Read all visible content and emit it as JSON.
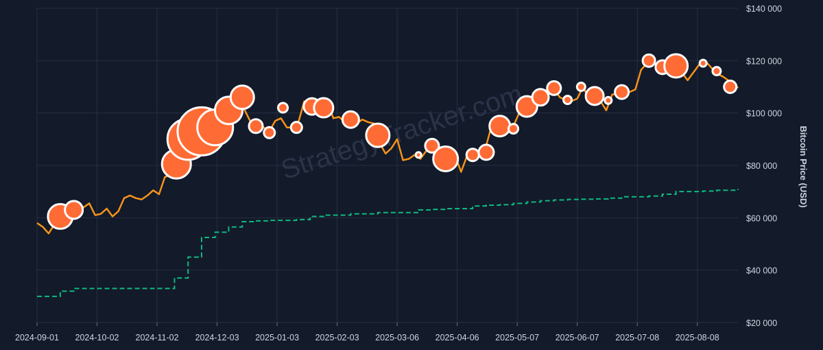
{
  "colors": {
    "background": "#131a2a",
    "grid": "#263044",
    "price_line": "#f7931a",
    "purchase_fill": "#ff6b35",
    "purchase_stroke": "#ffffff",
    "avg_cost_line": "#10b981",
    "axis_text": "#cfd5df",
    "watermark": "#2a3347"
  },
  "watermark": "StrategyTracker.com",
  "chart_data": {
    "type": "line",
    "x_type": "date",
    "xlim": [
      "2024-09-01",
      "2025-08-29"
    ],
    "ylim": [
      20000,
      140000
    ],
    "y_ticks": [
      20000,
      40000,
      60000,
      80000,
      100000,
      120000,
      140000
    ],
    "y_tick_labels": [
      "$20 000",
      "$40 000",
      "$60 000",
      "$80 000",
      "$100 000",
      "$120 000",
      "$140 000"
    ],
    "x_ticks": [
      "2024-09-01",
      "2024-10-02",
      "2024-11-02",
      "2024-12-03",
      "2025-01-03",
      "2025-02-03",
      "2025-03-06",
      "2025-04-06",
      "2025-05-07",
      "2025-06-07",
      "2025-07-08",
      "2025-08-08"
    ],
    "x_tick_labels": [
      "2024-09-01",
      "2024-10-02",
      "2024-11-02",
      "2024-12-03",
      "2025-01-03",
      "2025-02-03",
      "2025-03-06",
      "2025-04-06",
      "2025-05-07",
      "2025-06-07",
      "2025-07-08",
      "2025-08-08"
    ],
    "ylabel": "Bitcoin Price (USD)",
    "xlabel": "",
    "grid": true,
    "series": [
      {
        "kind": "line",
        "color": "#f7931a",
        "x": [
          "2024-09-01",
          "2024-09-04",
          "2024-09-07",
          "2024-09-10",
          "2024-09-13",
          "2024-09-16",
          "2024-09-19",
          "2024-09-22",
          "2024-09-25",
          "2024-09-28",
          "2024-10-01",
          "2024-10-04",
          "2024-10-07",
          "2024-10-10",
          "2024-10-13",
          "2024-10-16",
          "2024-10-19",
          "2024-10-22",
          "2024-10-25",
          "2024-10-28",
          "2024-10-31",
          "2024-11-03",
          "2024-11-06",
          "2024-11-09",
          "2024-11-12",
          "2024-11-15",
          "2024-11-18",
          "2024-11-21",
          "2024-11-24",
          "2024-11-27",
          "2024-11-30",
          "2024-12-03",
          "2024-12-06",
          "2024-12-09",
          "2024-12-12",
          "2024-12-15",
          "2024-12-18",
          "2024-12-21",
          "2024-12-24",
          "2024-12-27",
          "2024-12-30",
          "2025-01-02",
          "2025-01-05",
          "2025-01-08",
          "2025-01-11",
          "2025-01-14",
          "2025-01-17",
          "2025-01-20",
          "2025-01-23",
          "2025-01-26",
          "2025-01-29",
          "2025-02-01",
          "2025-02-04",
          "2025-02-07",
          "2025-02-10",
          "2025-02-13",
          "2025-02-16",
          "2025-02-19",
          "2025-02-22",
          "2025-02-25",
          "2025-02-28",
          "2025-03-03",
          "2025-03-06",
          "2025-03-09",
          "2025-03-12",
          "2025-03-15",
          "2025-03-18",
          "2025-03-21",
          "2025-03-24",
          "2025-03-27",
          "2025-03-30",
          "2025-04-02",
          "2025-04-05",
          "2025-04-08",
          "2025-04-11",
          "2025-04-14",
          "2025-04-17",
          "2025-04-20",
          "2025-04-23",
          "2025-04-26",
          "2025-04-29",
          "2025-05-02",
          "2025-05-05",
          "2025-05-08",
          "2025-05-11",
          "2025-05-14",
          "2025-05-17",
          "2025-05-20",
          "2025-05-23",
          "2025-05-26",
          "2025-05-29",
          "2025-06-01",
          "2025-06-04",
          "2025-06-07",
          "2025-06-10",
          "2025-06-13",
          "2025-06-16",
          "2025-06-19",
          "2025-06-22",
          "2025-06-25",
          "2025-06-28",
          "2025-07-01",
          "2025-07-04",
          "2025-07-07",
          "2025-07-10",
          "2025-07-13",
          "2025-07-16",
          "2025-07-19",
          "2025-07-22",
          "2025-07-25",
          "2025-07-28",
          "2025-07-31",
          "2025-08-03",
          "2025-08-06",
          "2025-08-09",
          "2025-08-12",
          "2025-08-15",
          "2025-08-18",
          "2025-08-21",
          "2025-08-24",
          "2025-08-27",
          "2025-08-29"
        ],
        "y": [
          58000,
          56500,
          54000,
          57500,
          60000,
          59000,
          62500,
          63500,
          64000,
          65500,
          61000,
          61500,
          63500,
          60500,
          62500,
          67500,
          68500,
          67500,
          67000,
          68500,
          70500,
          69000,
          75500,
          76500,
          88000,
          90500,
          92000,
          98500,
          97000,
          95500,
          97000,
          96000,
          99500,
          97500,
          101500,
          104500,
          100000,
          95500,
          94000,
          94500,
          93000,
          97000,
          98000,
          94500,
          94500,
          96500,
          104500,
          102500,
          103500,
          104000,
          104500,
          98000,
          98500,
          96500,
          97500,
          96000,
          97500,
          96500,
          96000,
          88500,
          84500,
          86500,
          90000,
          82000,
          82500,
          84000,
          82500,
          85500,
          87500,
          87000,
          82000,
          85000,
          83500,
          77500,
          83500,
          84500,
          85000,
          85000,
          93000,
          94500,
          95000,
          96500,
          95000,
          100000,
          104000,
          103500,
          103500,
          105500,
          110000,
          109000,
          106000,
          105000,
          104500,
          105500,
          110000,
          105500,
          107000,
          104500,
          101000,
          107000,
          107500,
          106500,
          108000,
          109000,
          116500,
          119000,
          118500,
          119000,
          119000,
          117000,
          118500,
          115500,
          112500,
          115500,
          118500,
          120000,
          117500,
          115000,
          114000,
          112500,
          111500,
          109500
        ]
      },
      {
        "kind": "step",
        "color": "#10b981",
        "x": [
          "2024-09-01",
          "2024-09-13",
          "2024-09-20",
          "2024-11-11",
          "2024-11-18",
          "2024-11-25",
          "2024-12-02",
          "2024-12-09",
          "2024-12-16",
          "2024-12-23",
          "2024-12-30",
          "2025-01-06",
          "2025-01-13",
          "2025-01-20",
          "2025-01-27",
          "2025-02-10",
          "2025-02-24",
          "2025-03-17",
          "2025-03-24",
          "2025-03-31",
          "2025-04-14",
          "2025-04-21",
          "2025-04-28",
          "2025-05-05",
          "2025-05-12",
          "2025-05-19",
          "2025-05-26",
          "2025-06-02",
          "2025-06-09",
          "2025-06-16",
          "2025-06-23",
          "2025-06-30",
          "2025-07-14",
          "2025-07-21",
          "2025-07-28",
          "2025-08-11",
          "2025-08-18",
          "2025-08-29"
        ],
        "y": [
          30000,
          32000,
          33000,
          37000,
          45000,
          52500,
          54500,
          56500,
          58500,
          58800,
          59000,
          59000,
          59300,
          60500,
          61000,
          61500,
          62000,
          63000,
          63200,
          63500,
          64500,
          64800,
          65000,
          65500,
          66000,
          66500,
          66800,
          67000,
          67100,
          67200,
          67500,
          68000,
          68300,
          69000,
          70000,
          70200,
          70500,
          71000
        ]
      },
      {
        "kind": "scatter",
        "fill": "#ff6b35",
        "stroke": "#ffffff",
        "x": [
          "2024-09-13",
          "2024-09-20",
          "2024-11-12",
          "2024-11-18",
          "2024-11-25",
          "2024-12-02",
          "2024-12-09",
          "2024-12-16",
          "2024-12-23",
          "2024-12-30",
          "2025-01-06",
          "2025-01-13",
          "2025-01-21",
          "2025-01-27",
          "2025-02-10",
          "2025-02-24",
          "2025-03-17",
          "2025-03-24",
          "2025-03-31",
          "2025-04-14",
          "2025-04-21",
          "2025-04-28",
          "2025-05-05",
          "2025-05-12",
          "2025-05-19",
          "2025-05-26",
          "2025-06-02",
          "2025-06-09",
          "2025-06-16",
          "2025-06-23",
          "2025-06-30",
          "2025-07-14",
          "2025-07-21",
          "2025-07-28",
          "2025-08-11",
          "2025-08-18",
          "2025-08-25"
        ],
        "y": [
          60500,
          63000,
          80500,
          90000,
          93000,
          94500,
          101000,
          106000,
          95000,
          92500,
          102000,
          94500,
          102500,
          102000,
          97500,
          91500,
          84000,
          87500,
          82500,
          84000,
          85000,
          95000,
          94000,
          102500,
          106000,
          109500,
          105000,
          110000,
          106500,
          104800,
          108000,
          120000,
          117500,
          118000,
          119000,
          116000,
          110000
        ],
        "sizes": [
          18,
          13,
          21,
          30,
          35,
          26,
          20,
          17,
          10,
          8,
          7,
          8,
          12,
          14,
          12,
          17,
          4,
          10,
          18,
          9,
          11,
          15,
          7,
          15,
          12,
          10,
          6,
          6,
          13,
          5,
          10,
          9,
          10,
          17,
          5,
          6,
          9
        ]
      }
    ]
  }
}
